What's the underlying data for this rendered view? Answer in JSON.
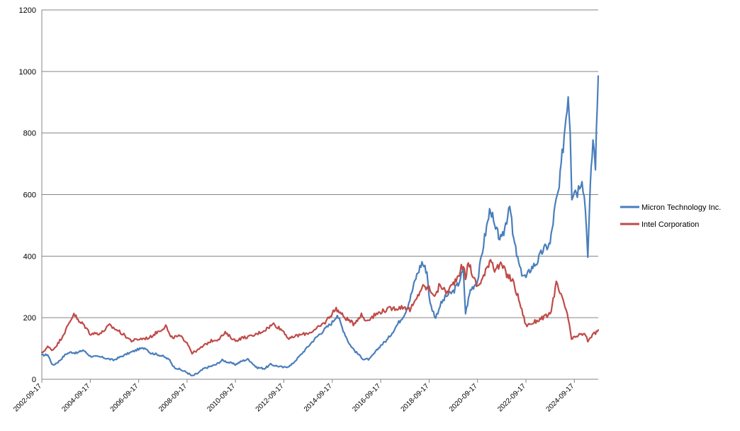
{
  "chart_data": {
    "type": "line",
    "title": "",
    "xlabel": "",
    "ylabel": "",
    "ylim": [
      0,
      1200
    ],
    "y_ticks": [
      "0",
      "200",
      "400",
      "600",
      "800",
      "1000",
      "1200"
    ],
    "x_range": [
      "2002-09-17",
      "2025-09-12"
    ],
    "x_ticks": [
      "2002-09-17",
      "2004-09-17",
      "2006-09-17",
      "2008-09-17",
      "2010-09-17",
      "2012-09-17",
      "2014-09-17",
      "2016-09-17",
      "2018-09-17",
      "2020-09-17",
      "2022-09-17",
      "2024-09-17"
    ],
    "grid": "horizontal",
    "legend_position": "right",
    "series": [
      {
        "name": "Micron Technology Inc.",
        "color": "#4a7ebb",
        "points": [
          [
            "2002-09-17",
            78
          ],
          [
            "2002-12-15",
            80
          ],
          [
            "2003-03-01",
            45
          ],
          [
            "2003-06-01",
            58
          ],
          [
            "2003-09-15",
            82
          ],
          [
            "2003-12-01",
            88
          ],
          [
            "2004-03-01",
            85
          ],
          [
            "2004-06-01",
            95
          ],
          [
            "2004-09-17",
            75
          ],
          [
            "2005-03-01",
            72
          ],
          [
            "2005-09-01",
            62
          ],
          [
            "2006-03-01",
            80
          ],
          [
            "2006-09-17",
            98
          ],
          [
            "2007-01-01",
            102
          ],
          [
            "2007-03-15",
            85
          ],
          [
            "2007-06-01",
            82
          ],
          [
            "2007-09-17",
            75
          ],
          [
            "2008-01-01",
            62
          ],
          [
            "2008-03-01",
            40
          ],
          [
            "2008-09-17",
            22
          ],
          [
            "2008-12-01",
            10
          ],
          [
            "2009-03-01",
            20
          ],
          [
            "2009-06-01",
            35
          ],
          [
            "2009-12-01",
            48
          ],
          [
            "2010-03-01",
            62
          ],
          [
            "2010-06-01",
            55
          ],
          [
            "2010-09-17",
            48
          ],
          [
            "2011-01-01",
            60
          ],
          [
            "2011-04-01",
            65
          ],
          [
            "2011-08-01",
            38
          ],
          [
            "2011-12-01",
            35
          ],
          [
            "2012-03-01",
            48
          ],
          [
            "2012-09-17",
            38
          ],
          [
            "2013-01-01",
            45
          ],
          [
            "2013-06-01",
            80
          ],
          [
            "2013-12-01",
            125
          ],
          [
            "2014-03-01",
            145
          ],
          [
            "2014-09-17",
            185
          ],
          [
            "2014-12-01",
            210
          ],
          [
            "2015-03-01",
            160
          ],
          [
            "2015-06-01",
            115
          ],
          [
            "2015-09-01",
            90
          ],
          [
            "2016-01-01",
            65
          ],
          [
            "2016-04-01",
            65
          ],
          [
            "2016-09-17",
            110
          ],
          [
            "2017-01-01",
            130
          ],
          [
            "2017-06-01",
            180
          ],
          [
            "2017-09-17",
            215
          ],
          [
            "2017-12-01",
            260
          ],
          [
            "2018-03-01",
            330
          ],
          [
            "2018-06-01",
            380
          ],
          [
            "2018-08-15",
            350
          ],
          [
            "2018-10-01",
            245
          ],
          [
            "2018-12-25",
            200
          ],
          [
            "2019-03-01",
            240
          ],
          [
            "2019-06-01",
            270
          ],
          [
            "2019-09-17",
            285
          ],
          [
            "2019-12-01",
            310
          ],
          [
            "2020-02-15",
            355
          ],
          [
            "2020-03-20",
            215
          ],
          [
            "2020-06-01",
            290
          ],
          [
            "2020-09-17",
            320
          ],
          [
            "2021-01-01",
            460
          ],
          [
            "2021-04-01",
            560
          ],
          [
            "2021-06-01",
            490
          ],
          [
            "2021-09-17",
            450
          ],
          [
            "2021-12-01",
            520
          ],
          [
            "2022-01-15",
            580
          ],
          [
            "2022-03-01",
            470
          ],
          [
            "2022-05-15",
            390
          ],
          [
            "2022-07-01",
            350
          ],
          [
            "2022-09-17",
            330
          ],
          [
            "2022-12-01",
            360
          ],
          [
            "2023-03-01",
            380
          ],
          [
            "2023-06-01",
            420
          ],
          [
            "2023-09-17",
            440
          ],
          [
            "2023-12-01",
            560
          ],
          [
            "2024-02-01",
            620
          ],
          [
            "2024-04-01",
            760
          ],
          [
            "2024-06-15",
            930
          ],
          [
            "2024-07-15",
            820
          ],
          [
            "2024-08-10",
            600
          ],
          [
            "2024-09-17",
            620
          ],
          [
            "2024-11-01",
            610
          ],
          [
            "2025-01-10",
            660
          ],
          [
            "2025-03-01",
            560
          ],
          [
            "2025-04-08",
            410
          ],
          [
            "2025-05-15",
            620
          ],
          [
            "2025-06-25",
            780
          ],
          [
            "2025-08-01",
            700
          ],
          [
            "2025-09-12",
            985
          ]
        ]
      },
      {
        "name": "Intel Corporation",
        "color": "#be4b48",
        "points": [
          [
            "2002-09-17",
            85
          ],
          [
            "2002-12-15",
            105
          ],
          [
            "2003-03-01",
            95
          ],
          [
            "2003-06-01",
            120
          ],
          [
            "2003-09-15",
            160
          ],
          [
            "2004-01-15",
            215
          ],
          [
            "2004-04-01",
            185
          ],
          [
            "2004-06-01",
            180
          ],
          [
            "2004-09-17",
            148
          ],
          [
            "2005-03-01",
            150
          ],
          [
            "2005-07-01",
            175
          ],
          [
            "2005-12-01",
            155
          ],
          [
            "2006-06-01",
            125
          ],
          [
            "2006-09-17",
            130
          ],
          [
            "2007-03-01",
            135
          ],
          [
            "2007-06-01",
            150
          ],
          [
            "2007-09-17",
            165
          ],
          [
            "2007-11-01",
            175
          ],
          [
            "2008-01-15",
            135
          ],
          [
            "2008-06-01",
            140
          ],
          [
            "2008-09-17",
            120
          ],
          [
            "2008-12-01",
            85
          ],
          [
            "2009-03-01",
            95
          ],
          [
            "2009-06-01",
            110
          ],
          [
            "2009-09-17",
            125
          ],
          [
            "2010-01-01",
            130
          ],
          [
            "2010-04-15",
            150
          ],
          [
            "2010-09-17",
            125
          ],
          [
            "2011-01-01",
            135
          ],
          [
            "2011-06-01",
            140
          ],
          [
            "2011-12-01",
            160
          ],
          [
            "2012-04-15",
            180
          ],
          [
            "2012-09-17",
            155
          ],
          [
            "2012-12-01",
            130
          ],
          [
            "2013-03-01",
            140
          ],
          [
            "2013-09-17",
            150
          ],
          [
            "2014-01-01",
            160
          ],
          [
            "2014-06-01",
            185
          ],
          [
            "2014-09-17",
            215
          ],
          [
            "2014-11-15",
            230
          ],
          [
            "2015-03-01",
            205
          ],
          [
            "2015-08-01",
            180
          ],
          [
            "2015-12-01",
            210
          ],
          [
            "2016-02-01",
            190
          ],
          [
            "2016-09-17",
            220
          ],
          [
            "2017-03-01",
            230
          ],
          [
            "2017-09-17",
            235
          ],
          [
            "2017-12-01",
            225
          ],
          [
            "2018-03-01",
            255
          ],
          [
            "2018-06-01",
            300
          ],
          [
            "2018-09-17",
            295
          ],
          [
            "2018-12-25",
            270
          ],
          [
            "2019-03-01",
            310
          ],
          [
            "2019-06-01",
            280
          ],
          [
            "2019-09-17",
            310
          ],
          [
            "2019-12-01",
            340
          ],
          [
            "2020-02-15",
            375
          ],
          [
            "2020-03-20",
            320
          ],
          [
            "2020-05-01",
            385
          ],
          [
            "2020-07-15",
            330
          ],
          [
            "2020-09-17",
            300
          ],
          [
            "2021-01-01",
            340
          ],
          [
            "2021-04-01",
            395
          ],
          [
            "2021-06-01",
            360
          ],
          [
            "2021-09-17",
            370
          ],
          [
            "2021-12-01",
            340
          ],
          [
            "2022-03-01",
            320
          ],
          [
            "2022-06-01",
            260
          ],
          [
            "2022-09-17",
            175
          ],
          [
            "2022-12-01",
            180
          ],
          [
            "2023-03-01",
            190
          ],
          [
            "2023-06-01",
            200
          ],
          [
            "2023-09-17",
            210
          ],
          [
            "2023-12-20",
            310
          ],
          [
            "2024-03-01",
            270
          ],
          [
            "2024-06-01",
            215
          ],
          [
            "2024-08-05",
            130
          ],
          [
            "2024-09-17",
            135
          ],
          [
            "2024-12-01",
            145
          ],
          [
            "2025-03-01",
            145
          ],
          [
            "2025-04-08",
            125
          ],
          [
            "2025-06-01",
            140
          ],
          [
            "2025-08-01",
            150
          ],
          [
            "2025-09-12",
            160
          ]
        ]
      }
    ]
  }
}
